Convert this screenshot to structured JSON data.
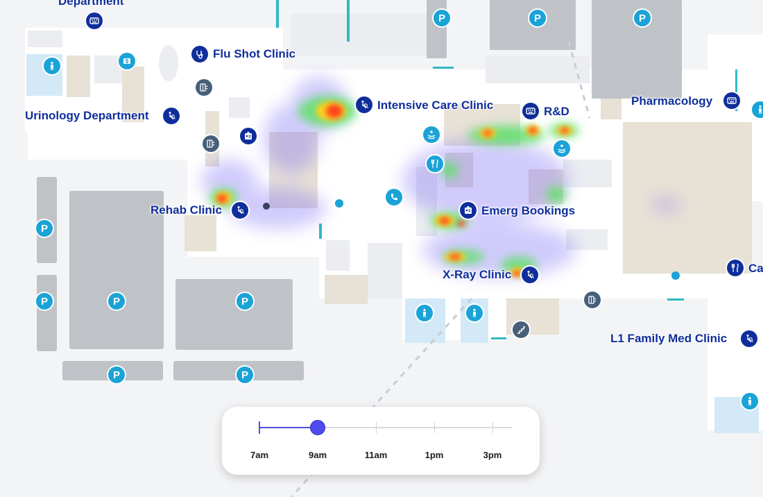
{
  "map": {
    "labels": {
      "department": "Department",
      "flu_shot": "Flu Shot Clinic",
      "intensive_care": "Intensive Care Clinic",
      "urinology": "Urinology Department",
      "rnd": "R&D",
      "pharmacology": "Pharmacology",
      "rehab": "Rehab Clinic",
      "emerg_bookings": "Emerg Bookings",
      "xray": "X-Ray Clinic",
      "cafe_partial": "Ca",
      "family_med": "L1 Family Med Clinic"
    },
    "parking_symbol": "P",
    "atm_symbol": "$",
    "colors": {
      "label": "#0f2e9c",
      "poi_navy": "#0f2e9c",
      "poi_cyan": "#1aa3d6",
      "poi_slate": "#46607a",
      "parking_lot": "#bfc2c7",
      "building_tan": "#e6e0d5",
      "walkway": "#ffffff",
      "water_blue": "#d3e9f7",
      "heat_hot": "#ff3b1f",
      "heat_warm": "#ffd21a",
      "heat_cool": "#5ee06a",
      "heat_faint": "#7b6cf4"
    },
    "icons": [
      "keyboard-icon",
      "stethoscope-icon",
      "restroom-icon",
      "atm-icon",
      "elevator-icon",
      "accessibility-icon",
      "id-badge-icon",
      "phone-icon",
      "fork-knife-icon",
      "massage-icon",
      "stairs-icon",
      "parking-icon"
    ]
  },
  "time_slider": {
    "ticks": [
      "7am",
      "9am",
      "11am",
      "1pm",
      "3pm"
    ],
    "selected": "9am",
    "selected_index": 1
  }
}
